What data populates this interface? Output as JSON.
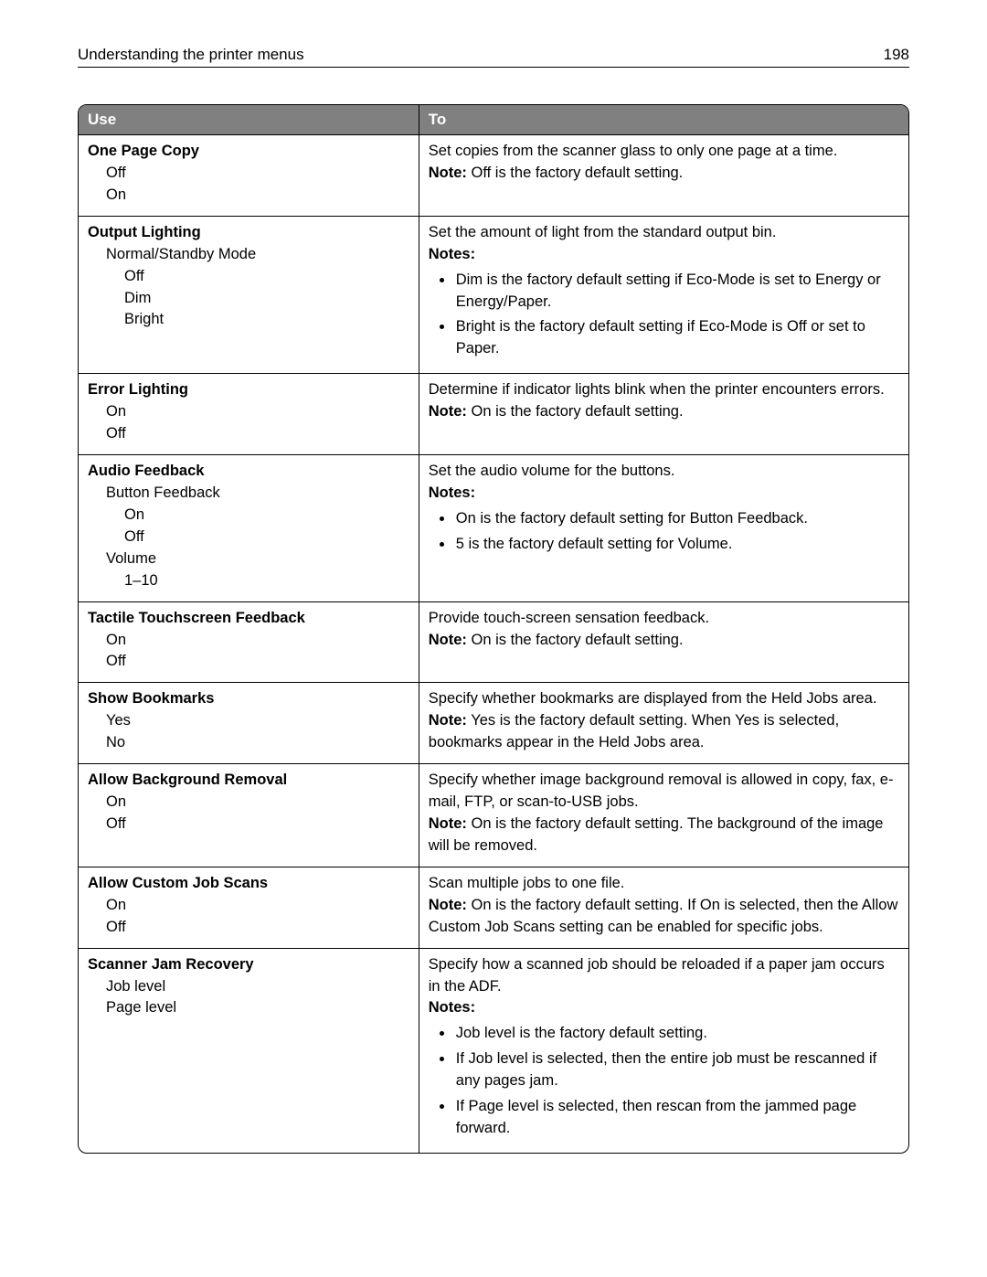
{
  "header": {
    "title": "Understanding the printer menus",
    "page": "198"
  },
  "columns": {
    "use": "Use",
    "to": "To"
  },
  "rows": [
    {
      "use": {
        "title": "One Page Copy",
        "opts": [
          [
            "Off",
            1
          ],
          [
            "On",
            1
          ]
        ]
      },
      "to": [
        {
          "type": "p",
          "text": "Set copies from the scanner glass to only one page at a time."
        },
        {
          "type": "note",
          "label": "Note:",
          "text": " Off is the factory default setting."
        }
      ]
    },
    {
      "use": {
        "title": "Output Lighting",
        "opts": [
          [
            "Normal/Standby Mode",
            1
          ],
          [
            "Off",
            2
          ],
          [
            "Dim",
            2
          ],
          [
            "Bright",
            2
          ]
        ]
      },
      "to": [
        {
          "type": "p",
          "text": "Set the amount of light from the standard output bin."
        },
        {
          "type": "noteslabel",
          "text": "Notes:"
        },
        {
          "type": "ul",
          "items": [
            "Dim is the factory default setting if Eco-Mode is set to Energy or Energy/Paper.",
            "Bright is the factory default setting if Eco-Mode is Off or set to Paper."
          ]
        }
      ]
    },
    {
      "use": {
        "title": "Error Lighting",
        "opts": [
          [
            "On",
            1
          ],
          [
            "Off",
            1
          ]
        ]
      },
      "to": [
        {
          "type": "p",
          "text": "Determine if indicator lights blink when the printer encounters errors."
        },
        {
          "type": "note",
          "label": "Note:",
          "text": " On is the factory default setting."
        }
      ]
    },
    {
      "use": {
        "title": "Audio Feedback",
        "opts": [
          [
            "Button Feedback",
            1
          ],
          [
            "On",
            2
          ],
          [
            "Off",
            2
          ],
          [
            "Volume",
            1
          ],
          [
            "1–10",
            2
          ]
        ]
      },
      "to": [
        {
          "type": "p",
          "text": "Set the audio volume for the buttons."
        },
        {
          "type": "noteslabel",
          "text": "Notes:"
        },
        {
          "type": "ul",
          "items": [
            "On is the factory default setting for Button Feedback.",
            "5 is the factory default setting for Volume."
          ]
        }
      ]
    },
    {
      "use": {
        "title": "Tactile Touchscreen Feedback",
        "opts": [
          [
            "On",
            1
          ],
          [
            "Off",
            1
          ]
        ]
      },
      "to": [
        {
          "type": "p",
          "text": "Provide touch-screen sensation feedback."
        },
        {
          "type": "note",
          "label": "Note:",
          "text": " On is the factory default setting."
        }
      ]
    },
    {
      "use": {
        "title": "Show Bookmarks",
        "opts": [
          [
            "Yes",
            1
          ],
          [
            "No",
            1
          ]
        ]
      },
      "to": [
        {
          "type": "p",
          "text": "Specify whether bookmarks are displayed from the Held Jobs area."
        },
        {
          "type": "note",
          "label": "Note:",
          "text": " Yes is the factory default setting. When Yes is selected, bookmarks appear in the Held Jobs area."
        }
      ]
    },
    {
      "use": {
        "title": "Allow Background Removal",
        "opts": [
          [
            "On",
            1
          ],
          [
            "Off",
            1
          ]
        ]
      },
      "to": [
        {
          "type": "p",
          "text": "Specify whether image background removal is allowed in copy, fax, e-mail, FTP, or scan-to-USB jobs."
        },
        {
          "type": "note",
          "label": "Note:",
          "text": " On is the factory default setting. The background of the image will be removed."
        }
      ]
    },
    {
      "use": {
        "title": "Allow Custom Job Scans",
        "opts": [
          [
            "On",
            1
          ],
          [
            "Off",
            1
          ]
        ]
      },
      "to": [
        {
          "type": "p",
          "text": "Scan multiple jobs to one file."
        },
        {
          "type": "note",
          "label": "Note:",
          "text": " On is the factory default setting. If On is selected, then the Allow Custom Job Scans setting can be enabled for specific jobs."
        }
      ]
    },
    {
      "use": {
        "title": "Scanner Jam Recovery",
        "opts": [
          [
            "Job level",
            1
          ],
          [
            "Page level",
            1
          ]
        ]
      },
      "to": [
        {
          "type": "p",
          "text": "Specify how a scanned job should be reloaded if a paper jam occurs in the ADF."
        },
        {
          "type": "noteslabel",
          "text": "Notes:"
        },
        {
          "type": "ul",
          "items": [
            "Job level is the factory default setting.",
            "If Job level is selected, then the entire job must be rescanned if any pages jam.",
            "If Page level is selected, then rescan from the jammed page forward."
          ]
        }
      ]
    }
  ]
}
